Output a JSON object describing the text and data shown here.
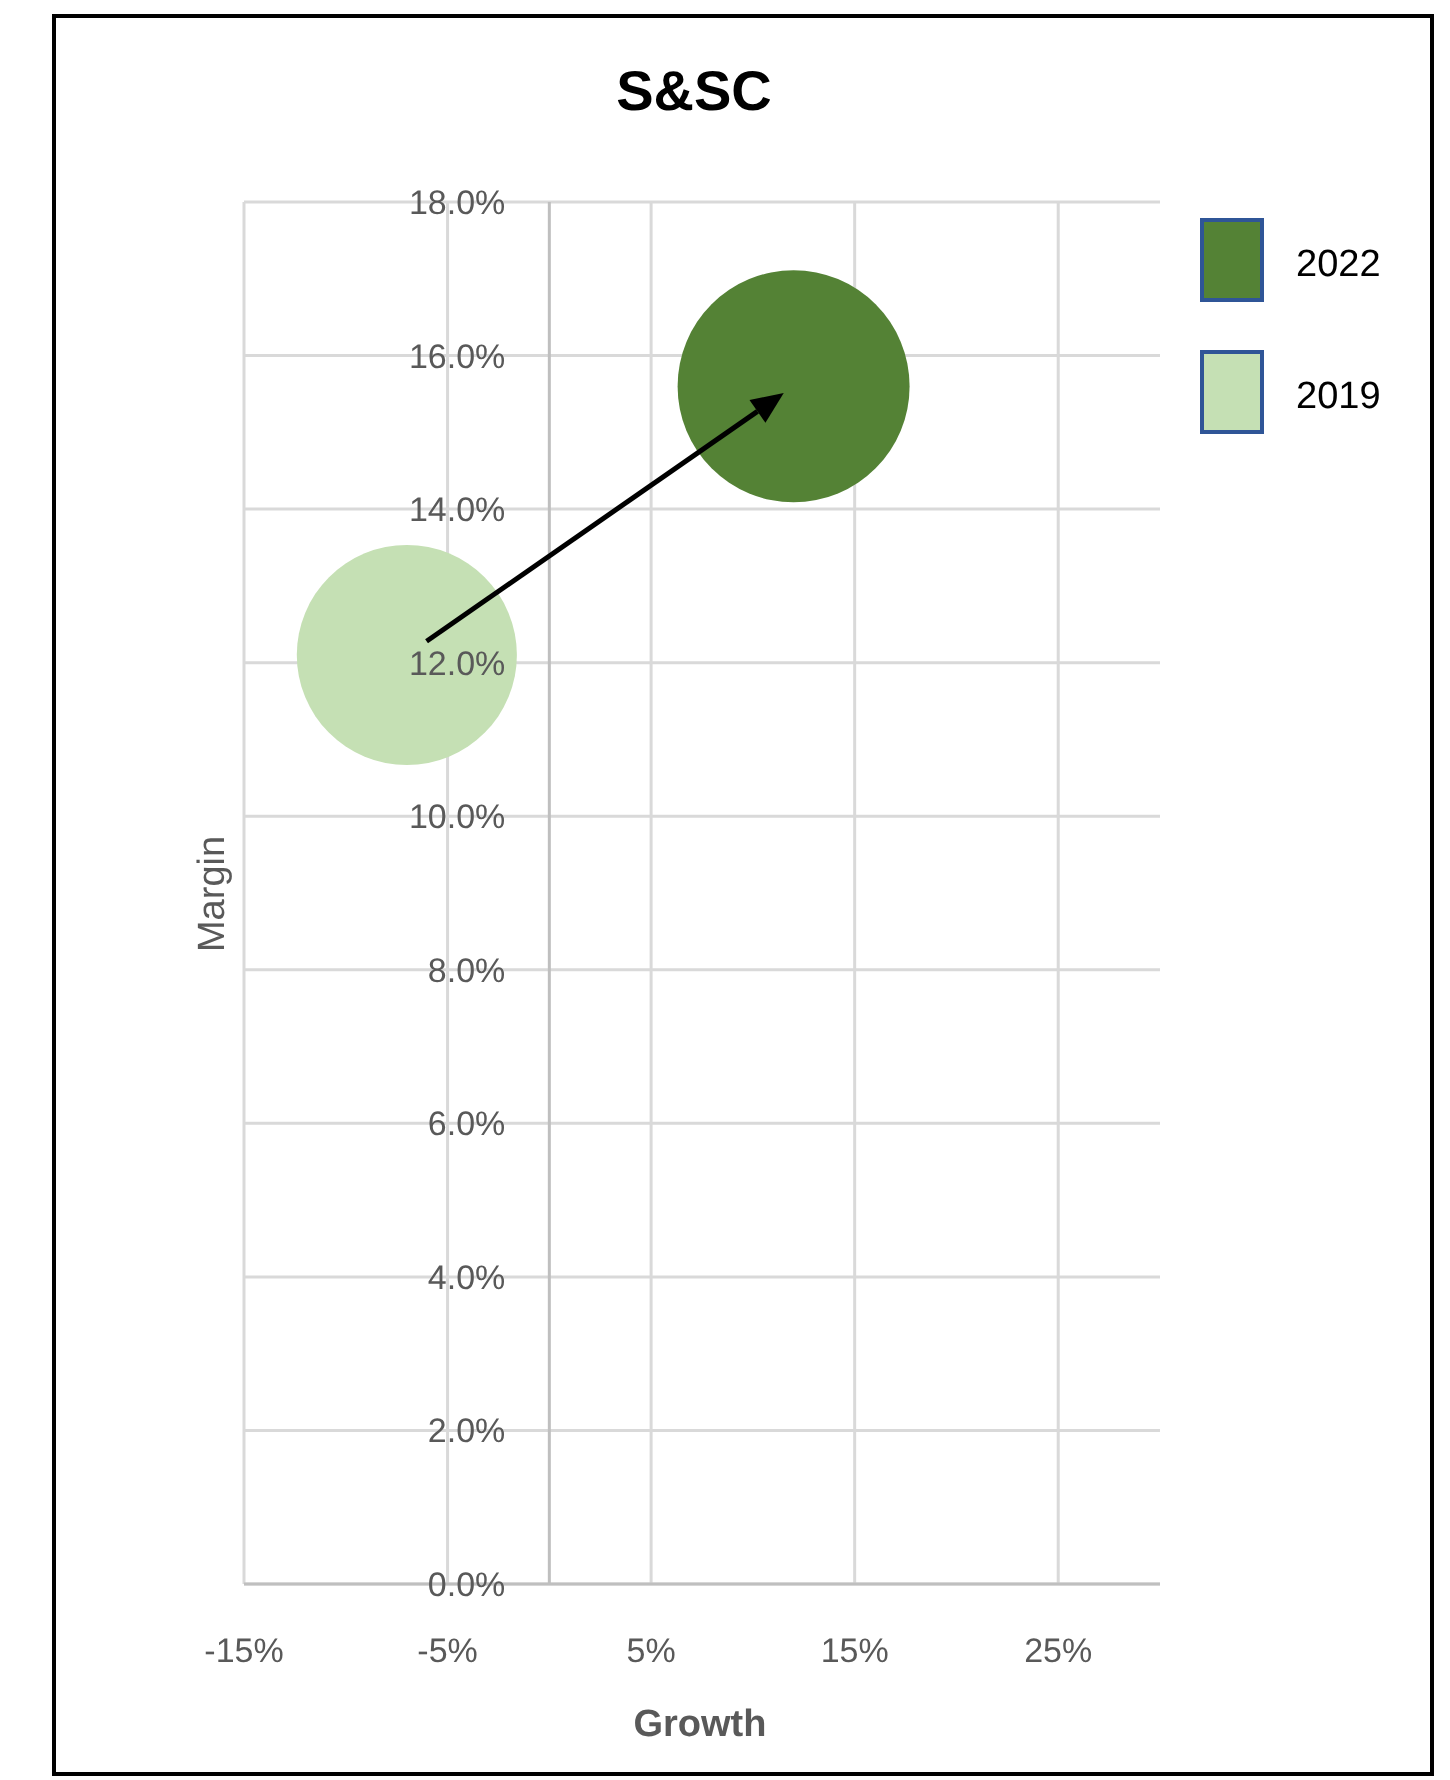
{
  "chart_data": {
    "type": "bubble",
    "title": "S&SC",
    "xlabel": "Growth",
    "ylabel": "Margin",
    "series": [
      {
        "name": "2022",
        "color": "#548235",
        "x": [
          12
        ],
        "values": [
          15.6
        ],
        "sizes": [
          1
        ]
      },
      {
        "name": "2019",
        "color": "#c5e0b4",
        "x": [
          -7
        ],
        "values": [
          12.1
        ],
        "sizes": [
          0.9
        ]
      }
    ],
    "xlim": [
      -15,
      30
    ],
    "xticks": [
      {
        "value": -15,
        "label": "-15%"
      },
      {
        "value": -5,
        "label": "-5%"
      },
      {
        "value": 5,
        "label": "5%"
      },
      {
        "value": 15,
        "label": "15%"
      },
      {
        "value": 25,
        "label": "25%"
      }
    ],
    "ylim": [
      0,
      18
    ],
    "yticks": [
      {
        "value": 0,
        "label": "0.0%"
      },
      {
        "value": 2,
        "label": "2.0%"
      },
      {
        "value": 4,
        "label": "4.0%"
      },
      {
        "value": 6,
        "label": "6.0%"
      },
      {
        "value": 8,
        "label": "8.0%"
      },
      {
        "value": 10,
        "label": "10.0%"
      },
      {
        "value": 12,
        "label": "12.0%"
      },
      {
        "value": 14,
        "label": "14.0%"
      },
      {
        "value": 16,
        "label": "16.0%"
      },
      {
        "value": 18,
        "label": "18.0%"
      }
    ],
    "grid": true,
    "legend": "right"
  }
}
